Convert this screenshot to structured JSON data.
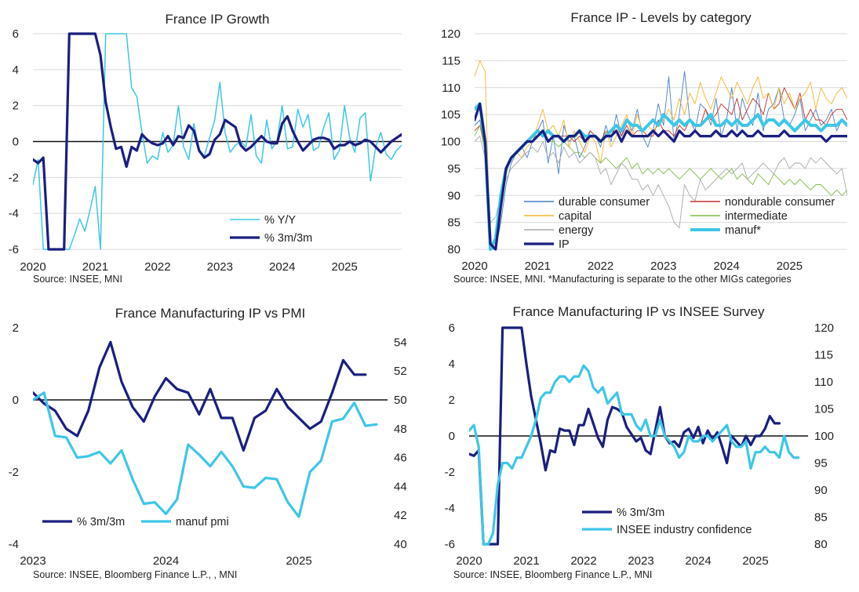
{
  "chart_data": [
    {
      "type": "line",
      "title": "France IP Growth",
      "source": "Source: INSEE, MNI",
      "x_ticks": [
        "2020",
        "2021",
        "2022",
        "2023",
        "2024",
        "2025"
      ],
      "xlim": [
        "2020-01",
        "2025-12"
      ],
      "y_ticks": [
        "6",
        "4",
        "2",
        "0",
        "-2",
        "-4",
        "-6"
      ],
      "ylim": [
        -6,
        6
      ],
      "grid": "horizontal",
      "legend": "bottom-right",
      "series": [
        {
          "name": "% Y/Y",
          "color": "#3ec6e8",
          "width": 1.5,
          "start": "2020-01",
          "values": [
            -2.4,
            -1.0,
            -6,
            -6,
            -6,
            -6,
            -6,
            -6,
            -5.2,
            -4.3,
            -5.0,
            -3.8,
            -2.5,
            -6,
            6,
            6,
            6,
            6,
            6,
            3.0,
            2.5,
            0.5,
            -1.2,
            -0.8,
            -1.0,
            0.5,
            -0.6,
            -0.2,
            2.0,
            -0.3,
            -1.0,
            1.0,
            -0.5,
            -0.8,
            0.2,
            1.2,
            3.3,
            0.5,
            -0.6,
            -0.2,
            0.0,
            -0.3,
            1.5,
            -0.8,
            -1.2,
            1.2,
            -0.4,
            0.0,
            2.0,
            -0.4,
            -0.3,
            1.8,
            0.8,
            1.5,
            -0.5,
            -0.3,
            0.8,
            1.6,
            -1.0,
            -0.5,
            2.0,
            0.2,
            -0.6,
            1.3,
            1.6,
            -2.2,
            -0.3,
            0.5,
            -0.7,
            -1.0,
            -0.5,
            -0.2,
            -0.3,
            -0.6,
            -0.8,
            -1.3,
            -1.2,
            0.0,
            -0.3,
            -2.0,
            -1.0,
            2.0
          ]
        },
        {
          "name": "% 3m/3m",
          "color": "#1a1f80",
          "width": 3.2,
          "start": "2020-01",
          "values": [
            -1.0,
            -1.2,
            -0.9,
            -6,
            -6,
            -6,
            -6,
            6,
            6,
            6,
            6,
            6,
            6,
            4.8,
            2.2,
            0.8,
            -0.4,
            -0.3,
            -1.4,
            -0.3,
            -0.5,
            0.4,
            0.1,
            -0.1,
            -0.2,
            -0.1,
            0.3,
            -0.2,
            0.3,
            0.2,
            0.9,
            0.6,
            -0.5,
            -0.9,
            -0.7,
            0.1,
            0.4,
            1.2,
            1.0,
            0.8,
            -0.2,
            -0.5,
            -0.3,
            0.0,
            0.3,
            0.0,
            -0.1,
            -0.1,
            1.0,
            1.4,
            0.6,
            0.0,
            -0.5,
            -0.2,
            0.1,
            0.2,
            0.2,
            0.1,
            -0.4,
            -0.2,
            -0.2,
            0.0,
            -0.2,
            -0.1,
            0.1,
            0.0,
            -0.3,
            -0.6,
            -0.3,
            0.0,
            0.2,
            0.4,
            -0.3,
            0.0
          ]
        }
      ]
    },
    {
      "type": "line",
      "title": "France IP - Levels by category",
      "source": "Source: INSEE, MNI. *Manufacturing is separate to the other MIGs categories",
      "x_ticks": [
        "2020",
        "2021",
        "2022",
        "2023",
        "2024",
        "2025"
      ],
      "xlim": [
        "2020-01",
        "2025-12"
      ],
      "y_ticks": [
        "120",
        "115",
        "110",
        "105",
        "100",
        "95",
        "90",
        "85",
        "80"
      ],
      "ylim": [
        80,
        120
      ],
      "grid": "horizontal",
      "legend": "bottom",
      "series": [
        {
          "name": "durable consumer",
          "color": "#4a7fc0",
          "width": 0.9,
          "start": "2020-01",
          "values": [
            103,
            104,
            98,
            80,
            80,
            85,
            92,
            96,
            98,
            99,
            97,
            100,
            102,
            104,
            96,
            101,
            94,
            103,
            100,
            101,
            97,
            99,
            102,
            101,
            99,
            103,
            100,
            105,
            101,
            104,
            102,
            106,
            101,
            99,
            102,
            107,
            103,
            112,
            100,
            105,
            113,
            104,
            102,
            107,
            106,
            103,
            108,
            101,
            104,
            110,
            102,
            108,
            105,
            103,
            109,
            102,
            106,
            107,
            110,
            104,
            103,
            105,
            108,
            102,
            104,
            106,
            103,
            104,
            106,
            102,
            104,
            103,
            103,
            104,
            105,
            103
          ]
        },
        {
          "name": "nondurable consumer",
          "color": "#c0302a",
          "width": 0.9,
          "start": "2020-01",
          "values": [
            102,
            103,
            99,
            80,
            82,
            90,
            95,
            97,
            98,
            99,
            100,
            100,
            101,
            102,
            100,
            101,
            101,
            101,
            101,
            100,
            101,
            100,
            102,
            101,
            100,
            102,
            101,
            103,
            101,
            103,
            101,
            102,
            102,
            101,
            101,
            104,
            102,
            102,
            101,
            103,
            102,
            104,
            103,
            103,
            106,
            104,
            105,
            107,
            106,
            105,
            108,
            104,
            106,
            108,
            107,
            105,
            109,
            106,
            107,
            110,
            108,
            106,
            109,
            104,
            106,
            104,
            104,
            103,
            105,
            106,
            106,
            104,
            105,
            105,
            105
          ]
        },
        {
          "name": "capital",
          "color": "#f0b532",
          "width": 0.9,
          "start": "2020-01",
          "values": [
            112,
            115,
            113,
            80,
            82,
            88,
            95,
            97,
            98,
            97,
            99,
            100,
            103,
            106,
            102,
            103,
            101,
            104,
            99,
            102,
            100,
            98,
            101,
            100,
            96,
            102,
            99,
            101,
            103,
            105,
            101,
            105,
            102,
            103,
            102,
            103,
            104,
            106,
            104,
            108,
            105,
            109,
            107,
            111,
            108,
            106,
            109,
            112,
            110,
            108,
            111,
            109,
            107,
            110,
            112,
            108,
            109,
            106,
            110,
            107,
            109,
            106,
            108,
            109,
            111,
            106,
            110,
            108,
            107,
            109,
            110,
            108,
            108,
            108,
            116
          ]
        },
        {
          "name": "intermediate",
          "color": "#7fba4a",
          "width": 0.9,
          "start": "2020-01",
          "values": [
            101,
            103,
            98,
            80,
            82,
            88,
            94,
            97,
            98,
            99,
            100,
            101,
            101,
            102,
            100,
            100,
            99,
            100,
            99,
            98,
            98,
            97,
            98,
            97,
            96,
            97,
            96,
            95,
            96,
            97,
            95,
            96,
            94,
            95,
            94,
            95,
            94,
            95,
            94,
            93,
            94,
            95,
            94,
            93,
            94,
            95,
            94,
            93,
            94,
            95,
            93,
            94,
            93,
            92,
            94,
            93,
            92,
            94,
            93,
            92,
            93,
            92,
            93,
            92,
            91,
            92,
            92,
            91,
            90,
            91,
            90,
            91
          ]
        },
        {
          "name": "energy",
          "color": "#aaaaaa",
          "width": 0.9,
          "start": "2020-01",
          "values": [
            100,
            101,
            97,
            85,
            86,
            90,
            93,
            95,
            96,
            97,
            98,
            99,
            98,
            100,
            97,
            98,
            96,
            99,
            97,
            98,
            96,
            97,
            98,
            97,
            94,
            95,
            92,
            94,
            96,
            95,
            93,
            93,
            91,
            92,
            90,
            92,
            90,
            88,
            85,
            84,
            92,
            90,
            89,
            93,
            91,
            92,
            93,
            94,
            95,
            94,
            95,
            96,
            93,
            94,
            95,
            96,
            95,
            94,
            96,
            97,
            95,
            96,
            96,
            95,
            97,
            96,
            97,
            96,
            95,
            94,
            95,
            90,
            92,
            96
          ]
        },
        {
          "name": "manuf*",
          "color": "#3ec6e8",
          "width": 4.0,
          "start": "2020-01",
          "values": [
            106,
            107,
            100,
            80,
            82,
            90,
            95,
            97,
            98,
            99,
            100,
            101,
            102,
            101,
            102,
            101,
            101,
            100,
            101,
            101,
            102,
            101,
            101,
            101,
            100,
            101,
            102,
            103,
            102,
            104,
            103,
            103,
            102,
            103,
            104,
            103,
            105,
            104,
            103,
            104,
            103,
            104,
            103,
            103,
            104,
            105,
            103,
            103,
            104,
            103,
            104,
            103,
            103,
            104,
            105,
            103,
            104,
            104,
            103,
            104,
            103,
            102,
            103,
            104,
            103,
            103,
            102,
            103,
            103,
            103,
            104,
            103,
            103,
            103,
            105
          ]
        },
        {
          "name": "IP",
          "color": "#1a1f80",
          "width": 3.2,
          "start": "2020-01",
          "values": [
            104,
            107,
            100,
            81,
            80,
            88,
            95,
            97,
            98,
            99,
            100,
            100,
            101,
            102,
            100,
            101,
            101,
            100,
            101,
            101,
            102,
            100,
            101,
            101,
            100,
            101,
            101,
            102,
            100,
            102,
            101,
            101,
            101,
            101,
            102,
            101,
            102,
            101,
            100,
            102,
            101,
            101,
            102,
            101,
            101,
            101,
            102,
            101,
            101,
            102,
            101,
            102,
            101,
            101,
            102,
            101,
            101,
            101,
            101,
            102,
            101,
            101,
            101,
            101,
            101,
            101,
            101,
            100,
            101,
            101,
            101,
            101,
            100,
            103
          ]
        }
      ]
    },
    {
      "type": "line",
      "title": "France Manufacturing IP vs PMI",
      "source": "Source: INSEE, Bloomberg Finance L.P., , MNI",
      "x_ticks": [
        "2023",
        "2024",
        "2025"
      ],
      "xlim": [
        "2023-01",
        "2025-09"
      ],
      "y_ticks": [
        "2",
        "0",
        "-2",
        "-4"
      ],
      "ylim": [
        -4,
        2
      ],
      "y2_ticks": [
        "54",
        "52",
        "50",
        "48",
        "46",
        "44",
        "42",
        "40"
      ],
      "y2lim": [
        40,
        55
      ],
      "legend": "bottom-left",
      "series": [
        {
          "name": "% 3m/3m",
          "color": "#1a1f80",
          "width": 3.2,
          "axis": "left",
          "start": "2023-01",
          "values": [
            0.2,
            -0.1,
            -0.3,
            -0.8,
            -1.0,
            -0.3,
            0.9,
            1.6,
            0.5,
            -0.2,
            -0.6,
            0.1,
            0.6,
            0.3,
            0.2,
            -0.4,
            0.3,
            -0.5,
            -0.5,
            -1.4,
            -0.5,
            -0.3,
            0.3,
            -0.2,
            -0.5,
            -0.8,
            -0.6,
            0.2,
            1.1,
            0.7,
            0.7
          ]
        },
        {
          "name": "manuf pmi",
          "color": "#3ec6e8",
          "width": 3.2,
          "axis": "right",
          "start": "2023-01",
          "values": [
            50.0,
            50.5,
            47.5,
            47.4,
            46.0,
            46.1,
            46.4,
            45.6,
            46.5,
            44.5,
            42.8,
            42.9,
            42.1,
            43.1,
            46.9,
            46.2,
            45.4,
            46.4,
            45.4,
            44.0,
            43.9,
            44.6,
            44.5,
            42.9,
            41.9,
            45.0,
            45.8,
            48.5,
            48.7,
            49.8,
            48.2,
            48.3
          ]
        }
      ]
    },
    {
      "type": "line",
      "title": "France Manufacturing IP vs INSEE Survey",
      "source": "Source: INSEE, Bloomberg Finance L.P., MNI",
      "x_ticks": [
        "2020",
        "2021",
        "2022",
        "2023",
        "2024",
        "2025"
      ],
      "xlim": [
        "2020-01",
        "2025-12"
      ],
      "y_ticks": [
        "6",
        "4",
        "2",
        "0",
        "-2",
        "-4",
        "-6"
      ],
      "ylim": [
        -6,
        6
      ],
      "y2_ticks": [
        "120",
        "115",
        "110",
        "105",
        "100",
        "95",
        "90",
        "85",
        "80"
      ],
      "y2lim": [
        80,
        120
      ],
      "legend": "bottom-center",
      "series": [
        {
          "name": "% 3m/3m",
          "color": "#1a1f80",
          "width": 3.2,
          "axis": "left",
          "start": "2020-01",
          "values": [
            -1.0,
            -1.1,
            -0.8,
            -6,
            -6,
            -6,
            -6,
            6,
            6,
            6,
            6,
            6,
            4.0,
            2.2,
            0.9,
            -0.4,
            -1.9,
            -0.8,
            -0.9,
            0.4,
            0.3,
            0.3,
            -0.5,
            0.6,
            0.6,
            1.5,
            0.7,
            -0.1,
            -0.6,
            0.9,
            1.6,
            1.5,
            1.3,
            0.5,
            0.1,
            -0.3,
            -0.1,
            -0.8,
            -1.0,
            0.3,
            1.6,
            0.0,
            -0.4,
            -0.3,
            -0.6,
            0.2,
            0.4,
            -0.1,
            0.5,
            -0.4,
            0.3,
            -0.2,
            0.2,
            -0.6,
            -1.5,
            0.0,
            -0.3,
            -0.6,
            0.0,
            -0.5,
            0.0,
            0.0,
            0.4,
            1.1,
            0.7,
            0.7
          ]
        },
        {
          "name": "INSEE industry confidence",
          "color": "#3ec6e8",
          "width": 3.2,
          "axis": "right",
          "start": "2020-01",
          "values": [
            101,
            102,
            98,
            80,
            80,
            82,
            91,
            95,
            95,
            94,
            96,
            96,
            98,
            100,
            103,
            107,
            108,
            108,
            110,
            111,
            111,
            110,
            111,
            111,
            113,
            112,
            109,
            108,
            109,
            106,
            107,
            108,
            104,
            104,
            104,
            102,
            101,
            103,
            100,
            100,
            103,
            100,
            99,
            98,
            96,
            97,
            100,
            99,
            99,
            100,
            100,
            99,
            100,
            101,
            102,
            99,
            98,
            98,
            99,
            94,
            97,
            97,
            98,
            97,
            97,
            96,
            100,
            97,
            96,
            96
          ]
        }
      ]
    }
  ]
}
